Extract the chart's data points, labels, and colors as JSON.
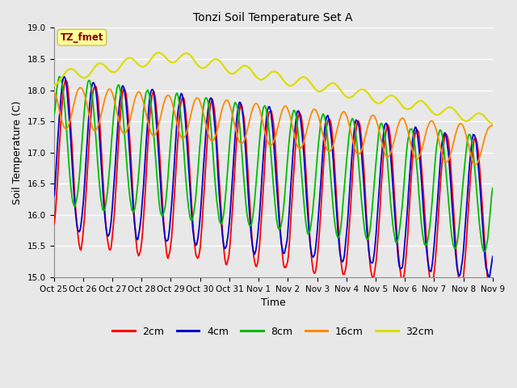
{
  "title": "Tonzi Soil Temperature Set A",
  "xlabel": "Time",
  "ylabel": "Soil Temperature (C)",
  "ylim": [
    15.0,
    19.0
  ],
  "yticks": [
    15.0,
    15.5,
    16.0,
    16.5,
    17.0,
    17.5,
    18.0,
    18.5,
    19.0
  ],
  "xtick_labels": [
    "Oct 25",
    "Oct 26",
    "Oct 27",
    "Oct 28",
    "Oct 29",
    "Oct 30",
    "Oct 31",
    "Nov 1",
    "Nov 2",
    "Nov 3",
    "Nov 4",
    "Nov 5",
    "Nov 6",
    "Nov 7",
    "Nov 8",
    "Nov 9"
  ],
  "annotation_text": "TZ_fmet",
  "annotation_color": "#8B0000",
  "annotation_bg": "#FFFF99",
  "annotation_border": "#CCCC66",
  "fig_bg": "#E8E8E8",
  "plot_bg": "#E8E8E8",
  "grid_color": "#FFFFFF",
  "colors": {
    "2cm": "#FF0000",
    "4cm": "#0000CC",
    "8cm": "#00BB00",
    "16cm": "#FF8800",
    "32cm": "#DDDD00"
  },
  "legend_labels": [
    "2cm",
    "4cm",
    "8cm",
    "16cm",
    "32cm"
  ],
  "lw": 1.3,
  "n_points": 720
}
